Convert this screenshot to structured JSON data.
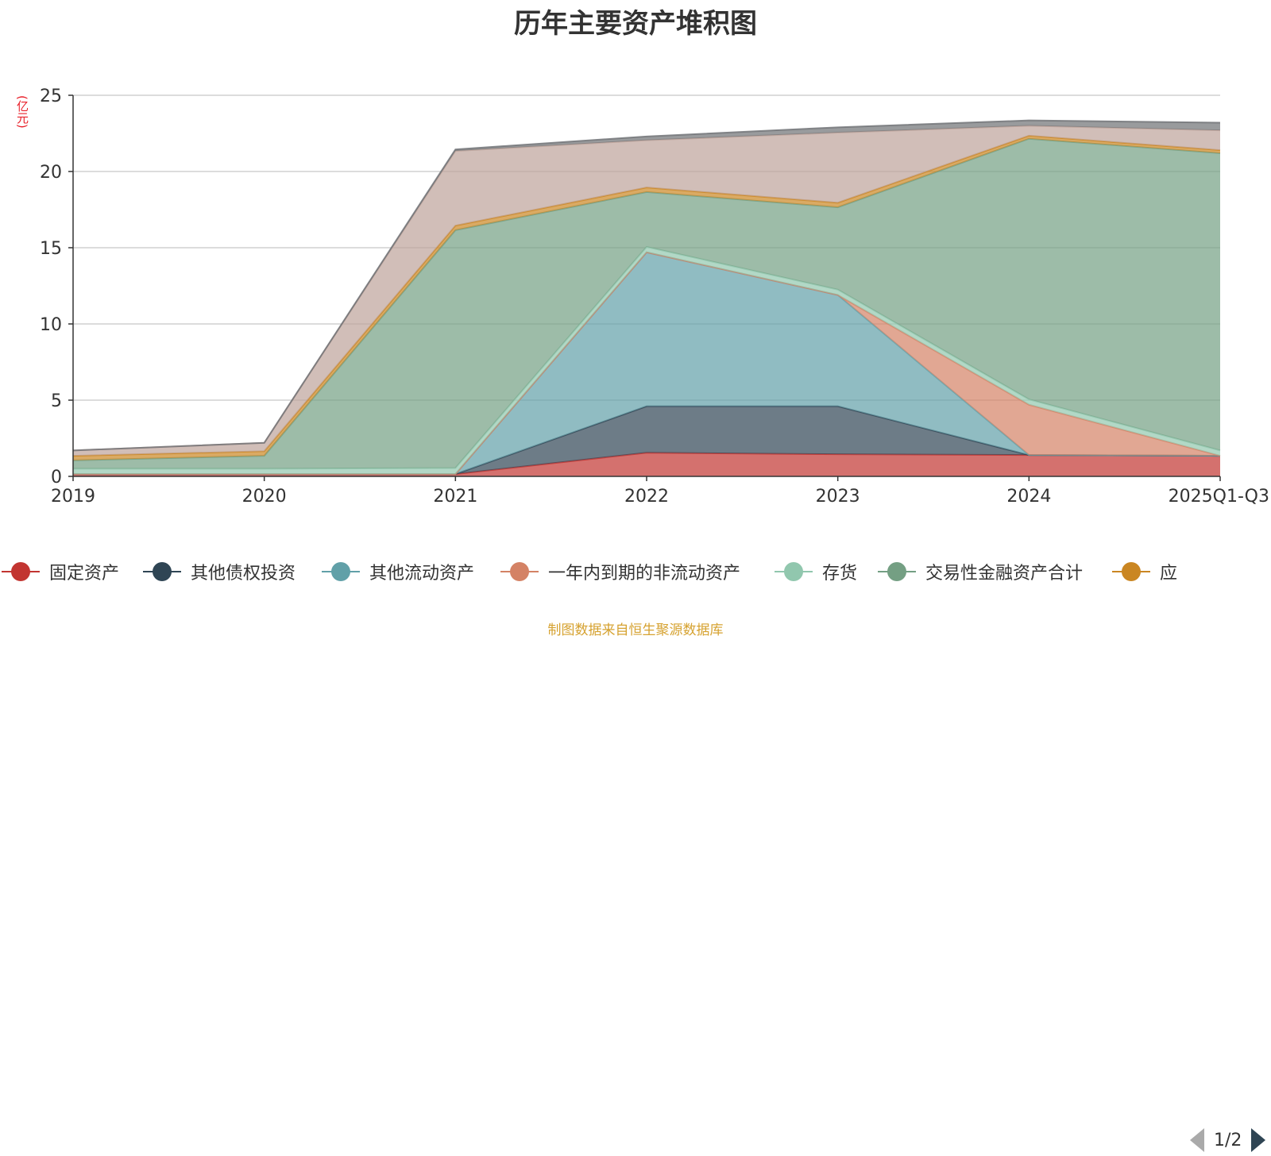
{
  "title": "历年主要资产堆积图",
  "unit_label": "(亿元)",
  "source_note": "制图数据来自恒生聚源数据库",
  "legend": {
    "items": [
      {
        "label": "固定资产",
        "color": "#c23531"
      },
      {
        "label": "其他债权投资",
        "color": "#2f4554"
      },
      {
        "label": "其他流动资产",
        "color": "#61a0a8"
      },
      {
        "label": "一年内到期的非流动资产",
        "color": "#d48265"
      },
      {
        "label": "存货",
        "color": "#91c7ae"
      },
      {
        "label": "交易性金融资产合计",
        "color": "#749f83"
      },
      {
        "label": "应",
        "color": "#ca8622"
      }
    ],
    "page_indicator": "1/2"
  },
  "chart_data": {
    "type": "area",
    "stacked": true,
    "categories": [
      "2019",
      "2020",
      "2021",
      "2022",
      "2023",
      "2024",
      "2025Q1-Q3"
    ],
    "y_ticks": [
      "0",
      "5",
      "10",
      "15",
      "20",
      "25"
    ],
    "ylim": [
      0,
      25
    ],
    "grid": true,
    "series": [
      {
        "name": "固定资产",
        "color": "#c23531",
        "values": [
          0.15,
          0.15,
          0.15,
          1.55,
          1.45,
          1.4,
          1.35
        ]
      },
      {
        "name": "其他债权投资",
        "color": "#2f4554",
        "values": [
          0,
          0,
          0,
          3.05,
          3.15,
          0,
          0
        ]
      },
      {
        "name": "其他流动资产",
        "color": "#61a0a8",
        "values": [
          0,
          0,
          0,
          10.1,
          7.3,
          0,
          0
        ]
      },
      {
        "name": "一年内到期的非流动资产",
        "color": "#d48265",
        "values": [
          0,
          0,
          0,
          0,
          0,
          3.3,
          0
        ]
      },
      {
        "name": "存货",
        "color": "#91c7ae",
        "values": [
          0.35,
          0.35,
          0.4,
          0.35,
          0.35,
          0.35,
          0.35
        ]
      },
      {
        "name": "交易性金融资产合计",
        "color": "#749f83",
        "values": [
          0.55,
          0.85,
          15.6,
          3.6,
          5.4,
          17.1,
          19.5
        ]
      },
      {
        "name": "应",
        "color": "#ca8622",
        "values": [
          0.3,
          0.3,
          0.3,
          0.3,
          0.3,
          0.2,
          0.2
        ]
      },
      {
        "color": "#bda29a",
        "values": [
          0.35,
          0.55,
          4.9,
          3.1,
          4.6,
          0.65,
          1.3
        ]
      },
      {
        "color": "#6e7074",
        "values": [
          0,
          0,
          0.1,
          0.25,
          0.35,
          0.35,
          0.5
        ]
      }
    ]
  }
}
